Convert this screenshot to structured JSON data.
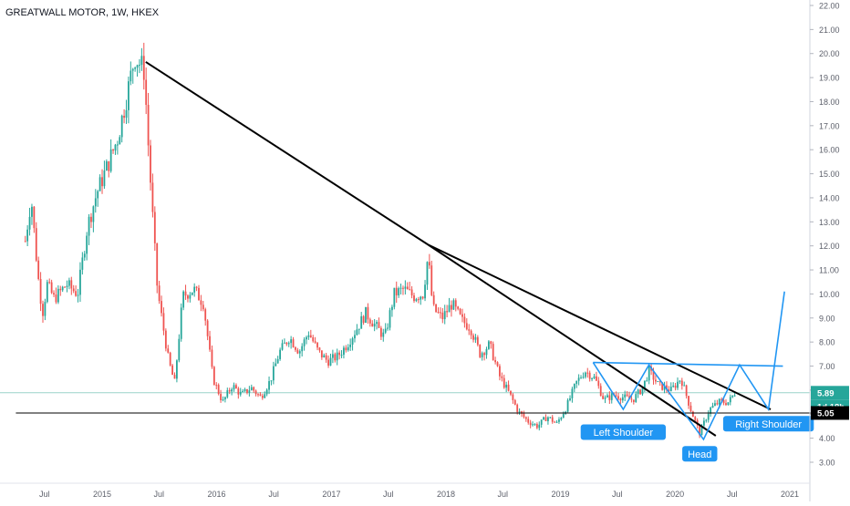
{
  "title": "GREATWALL MOTOR, 1W, HKEX",
  "colors": {
    "up": "#26a69a",
    "down": "#ef5350",
    "pattern": "#2196f3",
    "trend": "#000000",
    "current_line": "#9ad3c9",
    "axis_text": "#5d606b",
    "grid": "#e0e3eb"
  },
  "chart_data": {
    "type": "candlestick",
    "x_ticks": [
      "Jul",
      "2015",
      "Jul",
      "2016",
      "Jul",
      "2017",
      "Jul",
      "2018",
      "Jul",
      "2019",
      "Jul",
      "2020",
      "Jul",
      "2021"
    ],
    "y_ticks": [
      "22.00",
      "21.00",
      "20.00",
      "19.00",
      "18.00",
      "17.00",
      "16.00",
      "15.00",
      "14.00",
      "13.00",
      "12.00",
      "11.00",
      "10.00",
      "9.00",
      "8.00",
      "7.00",
      "6.00",
      "5.00",
      "4.00",
      "3.00"
    ],
    "ylim": [
      2.6,
      22.15
    ],
    "last_price": "5.89",
    "countdown": "1d 18h",
    "support_price": "5.05",
    "price_path": [
      [
        "2014-05-01",
        12.2
      ],
      [
        "2014-05-20",
        14.0
      ],
      [
        "2014-06-10",
        10.8
      ],
      [
        "2014-06-25",
        9.2
      ],
      [
        "2014-07-10",
        10.4
      ],
      [
        "2014-08-01",
        9.8
      ],
      [
        "2014-09-10",
        10.4
      ],
      [
        "2014-10-15",
        10.0
      ],
      [
        "2014-11-15",
        12.8
      ],
      [
        "2014-12-15",
        14.2
      ],
      [
        "2015-01-20",
        15.4
      ],
      [
        "2015-02-20",
        16.5
      ],
      [
        "2015-03-20",
        18.2
      ],
      [
        "2015-04-15",
        19.9
      ],
      [
        "2015-05-15",
        19.3
      ],
      [
        "2015-05-29",
        16.0
      ],
      [
        "2015-06-12",
        13.0
      ],
      [
        "2015-06-26",
        10.2
      ],
      [
        "2015-07-10",
        9.0
      ],
      [
        "2015-08-01",
        7.2
      ],
      [
        "2015-08-20",
        6.3
      ],
      [
        "2015-09-15",
        9.9
      ],
      [
        "2015-10-20",
        10.2
      ],
      [
        "2015-11-20",
        9.6
      ],
      [
        "2015-12-20",
        6.5
      ],
      [
        "2016-01-20",
        5.5
      ],
      [
        "2016-02-20",
        6.2
      ],
      [
        "2016-03-20",
        5.8
      ],
      [
        "2016-04-20",
        6.1
      ],
      [
        "2016-05-20",
        5.7
      ],
      [
        "2016-06-20",
        6.4
      ],
      [
        "2016-07-20",
        7.6
      ],
      [
        "2016-08-20",
        8.2
      ],
      [
        "2016-09-20",
        7.6
      ],
      [
        "2016-10-20",
        8.4
      ],
      [
        "2016-11-20",
        7.6
      ],
      [
        "2016-12-20",
        7.2
      ],
      [
        "2017-01-20",
        7.4
      ],
      [
        "2017-02-20",
        7.9
      ],
      [
        "2017-03-20",
        8.5
      ],
      [
        "2017-04-20",
        9.2
      ],
      [
        "2017-05-20",
        8.7
      ],
      [
        "2017-06-20",
        8.2
      ],
      [
        "2017-07-20",
        10.0
      ],
      [
        "2017-08-20",
        10.2
      ],
      [
        "2017-09-20",
        9.9
      ],
      [
        "2017-10-20",
        10.0
      ],
      [
        "2017-11-05",
        11.6
      ],
      [
        "2017-11-20",
        9.4
      ],
      [
        "2017-12-20",
        9.0
      ],
      [
        "2018-01-20",
        9.6
      ],
      [
        "2018-02-20",
        8.9
      ],
      [
        "2018-03-20",
        8.6
      ],
      [
        "2018-04-20",
        7.5
      ],
      [
        "2018-05-20",
        7.9
      ],
      [
        "2018-06-20",
        6.6
      ],
      [
        "2018-07-20",
        5.9
      ],
      [
        "2018-08-20",
        5.1
      ],
      [
        "2018-09-20",
        4.7
      ],
      [
        "2018-10-20",
        4.5
      ],
      [
        "2018-11-20",
        4.9
      ],
      [
        "2018-12-20",
        4.6
      ],
      [
        "2019-01-20",
        5.3
      ],
      [
        "2019-02-20",
        6.3
      ],
      [
        "2019-03-20",
        6.8
      ],
      [
        "2019-04-20",
        6.5
      ],
      [
        "2019-05-20",
        5.6
      ],
      [
        "2019-06-20",
        5.8
      ],
      [
        "2019-07-20",
        5.7
      ],
      [
        "2019-08-20",
        5.6
      ],
      [
        "2019-09-20",
        6.1
      ],
      [
        "2019-10-10",
        6.8
      ],
      [
        "2019-11-10",
        6.2
      ],
      [
        "2019-12-20",
        6.0
      ],
      [
        "2020-01-20",
        6.5
      ],
      [
        "2020-02-20",
        5.2
      ],
      [
        "2020-03-20",
        4.2
      ],
      [
        "2020-04-20",
        5.2
      ],
      [
        "2020-05-20",
        5.5
      ],
      [
        "2020-06-20",
        5.5
      ],
      [
        "2020-07-10",
        5.9
      ]
    ],
    "trend_lines": [
      [
        [
          "2015-05-20",
          19.65
        ],
        [
          "2017-11-05",
          12.05
        ]
      ],
      [
        [
          "2017-11-05",
          12.05
        ],
        [
          "2020-05-10",
          4.1
        ]
      ],
      [
        [
          "2017-11-05",
          12.05
        ],
        [
          "2020-11-01",
          5.2
        ]
      ],
      [
        [
          "2014-04-01",
          5.05
        ],
        [
          "2021-04-01",
          5.05
        ]
      ]
    ],
    "pattern_path": [
      [
        "2019-04-15",
        7.15
      ],
      [
        "2019-07-20",
        5.2
      ],
      [
        "2019-10-10",
        7.05
      ],
      [
        "2020-04-01",
        3.95
      ],
      [
        "2020-07-25",
        7.05
      ],
      [
        "2020-10-25",
        5.2
      ],
      [
        "2020-12-15",
        10.1
      ]
    ],
    "neckline": [
      [
        "2019-04-15",
        7.15
      ],
      [
        "2020-12-10",
        7.0
      ]
    ],
    "annotations": [
      {
        "label": "Left Shoulder",
        "date": "2019-07-20",
        "price": 4.25
      },
      {
        "label": "Head",
        "date": "2020-03-20",
        "price": 3.35
      },
      {
        "label": "Right Shoulder",
        "date": "2020-10-25",
        "price": 4.6
      }
    ]
  }
}
